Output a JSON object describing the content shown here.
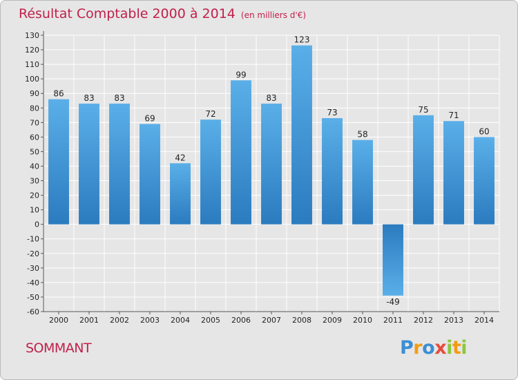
{
  "chart_data": {
    "type": "bar",
    "title": "Résultat Comptable 2000 à 2014",
    "subtitle": "(en milliers d'€)",
    "categories": [
      "2000",
      "2001",
      "2002",
      "2003",
      "2004",
      "2005",
      "2006",
      "2007",
      "2008",
      "2009",
      "2010",
      "2011",
      "2012",
      "2013",
      "2014"
    ],
    "values": [
      86,
      83,
      83,
      69,
      42,
      72,
      99,
      83,
      123,
      73,
      58,
      -49,
      75,
      71,
      60
    ],
    "ylim": [
      -60,
      130
    ],
    "ytick_step": 10,
    "xlabel": "",
    "ylabel": "",
    "grid": true
  },
  "footer": {
    "commune": "SOMMANT",
    "logo_letters": [
      "P",
      "r",
      "o",
      "x",
      "i",
      "t",
      "i"
    ]
  },
  "colors": {
    "title": "#c0204a",
    "bar_light": "#5aafe8",
    "bar_dark": "#2b7bbf",
    "grid": "#ffffff",
    "background": "#e6e6e6",
    "logo": [
      "#3a8fd6",
      "#f39c12",
      "#3a8fd6",
      "#e74c3c",
      "#8dc63f",
      "#f39c12",
      "#8dc63f"
    ]
  }
}
